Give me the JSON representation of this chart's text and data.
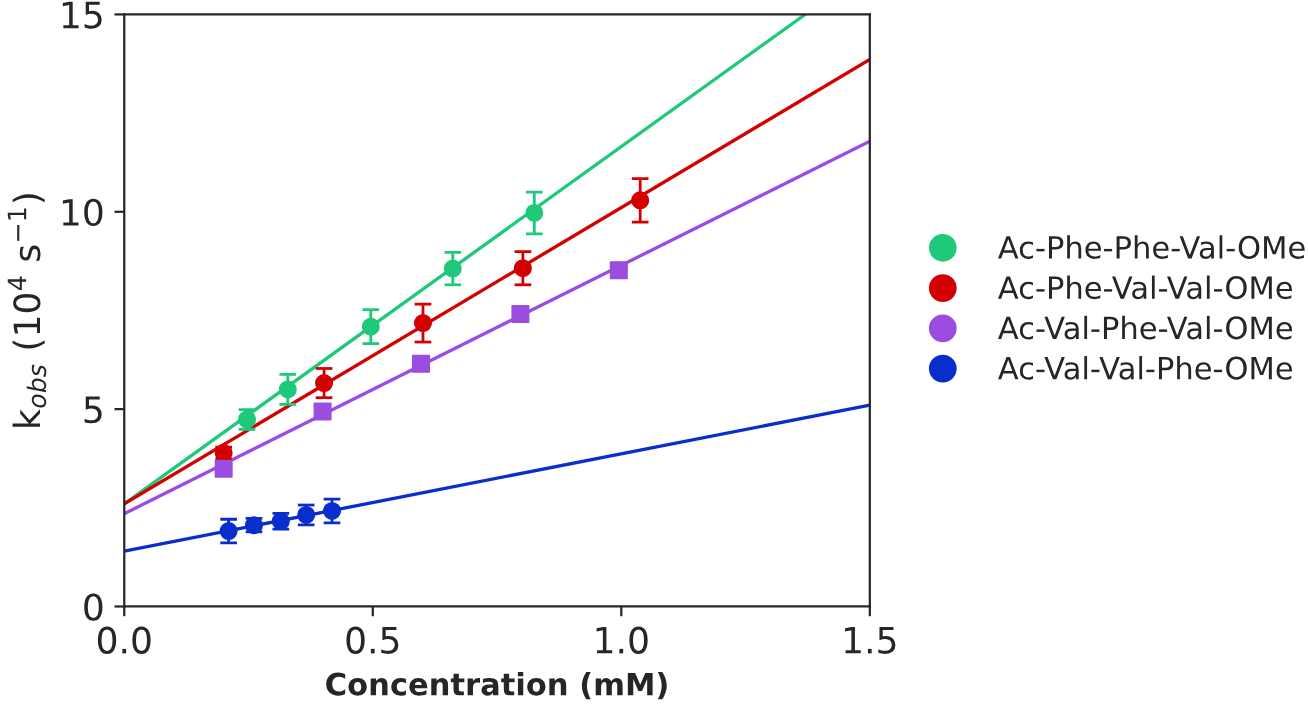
{
  "chart_data": {
    "type": "scatter",
    "xlabel": "Concentration (mM)",
    "ylabel": "k$_{obs}$ (10$^{4}$ s$^{−1}$)",
    "xlim": [
      0,
      1.5
    ],
    "ylim": [
      0,
      15
    ],
    "xticks": [
      {
        "value": 0,
        "label": "0.0"
      },
      0.5,
      {
        "value": 1,
        "label": "1.0"
      },
      1.5
    ],
    "yticks": [
      0,
      5,
      10,
      15
    ],
    "grid": false,
    "legend": "right",
    "marker": "circle",
    "series": [
      {
        "name": "Ac-Phe-Phe-Val-OMe",
        "color": "#1fc97a",
        "x": [
          0.247,
          0.329,
          0.496,
          0.661,
          0.825
        ],
        "values": [
          4.74,
          5.5,
          7.09,
          8.56,
          9.97
        ],
        "errors": [
          0.25,
          0.38,
          0.43,
          0.41,
          0.53
        ]
      },
      {
        "name": "Ac-Phe-Val-Val-OMe",
        "color": "#d40000",
        "x": [
          0.2,
          0.402,
          0.601,
          0.802,
          1.038
        ],
        "values": [
          3.89,
          5.66,
          7.18,
          8.57,
          10.29
        ],
        "errors": [
          0.15,
          0.37,
          0.48,
          0.42,
          0.55
        ]
      },
      {
        "name": "Ac-Val-Phe-Val-OMe",
        "color": "#9b4de0",
        "marker": "square",
        "x": [
          0.2,
          0.399,
          0.597,
          0.797,
          0.995
        ],
        "values": [
          3.49,
          4.94,
          6.15,
          7.41,
          8.52
        ],
        "errors": [
          0.12,
          0.12,
          0.15,
          0.12,
          0.05
        ]
      },
      {
        "name": "Ac-Val-Val-Phe-OMe",
        "color": "#0a2ecc",
        "x": [
          0.21,
          0.261,
          0.315,
          0.366,
          0.418
        ],
        "values": [
          1.91,
          2.06,
          2.16,
          2.32,
          2.42
        ],
        "errors": [
          0.3,
          0.17,
          0.2,
          0.25,
          0.3
        ]
      },
      {
        "type": "line",
        "marker": "none",
        "color": "#1fc97a",
        "x": [
          0,
          1.37
        ],
        "values": [
          2.6,
          15
        ]
      },
      {
        "type": "line",
        "marker": "none",
        "color": "#d40000",
        "x": [
          0,
          1.5
        ],
        "values": [
          2.6,
          13.86
        ]
      },
      {
        "type": "line",
        "marker": "none",
        "color": "#9b4de0",
        "x": [
          0,
          1.5
        ],
        "values": [
          2.35,
          11.79
        ]
      },
      {
        "type": "line",
        "marker": "none",
        "color": "#0a2ecc",
        "x": [
          0,
          1.5
        ],
        "values": [
          1.4,
          5.1
        ]
      }
    ]
  }
}
